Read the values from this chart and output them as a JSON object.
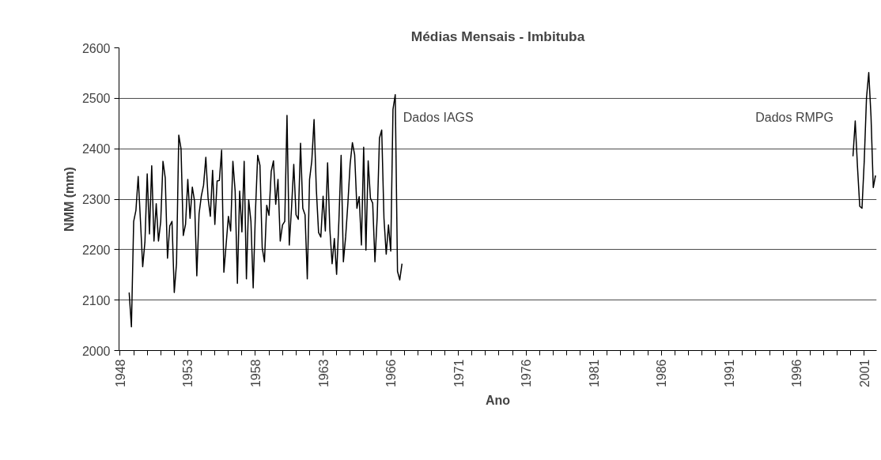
{
  "chart_data": {
    "type": "line",
    "title": "Médias Mensais - Imbituba",
    "xlabel": "Ano",
    "ylabel": "NMM (mm)",
    "categories": [
      "1948",
      null,
      null,
      null,
      null,
      null,
      null,
      null,
      null,
      null,
      null,
      null,
      null,
      null,
      null,
      null,
      null,
      null,
      null,
      null,
      null,
      null,
      null,
      null,
      null,
      null,
      null,
      null,
      null,
      null,
      "1953",
      null,
      null,
      null,
      null,
      null,
      null,
      null,
      null,
      null,
      null,
      null,
      null,
      null,
      null,
      null,
      null,
      null,
      null,
      null,
      null,
      null,
      null,
      null,
      null,
      null,
      null,
      null,
      null,
      null,
      "1958",
      null,
      null,
      null,
      null,
      null,
      null,
      null,
      null,
      null,
      null,
      null,
      null,
      null,
      null,
      null,
      null,
      null,
      null,
      null,
      null,
      null,
      null,
      null,
      null,
      null,
      null,
      null,
      null,
      null,
      "1963",
      null,
      null,
      null,
      null,
      null,
      null,
      null,
      null,
      null,
      null,
      null,
      null,
      null,
      null,
      null,
      null,
      null,
      null,
      null,
      null,
      null,
      null,
      null,
      null,
      null,
      null,
      null,
      null,
      null,
      "1966",
      null,
      null,
      null,
      null,
      null,
      null,
      null,
      null,
      null,
      null,
      null,
      null,
      null,
      null,
      null,
      null,
      null,
      null,
      null,
      null,
      null,
      null,
      null,
      null,
      null,
      null,
      null,
      null,
      null,
      "1971",
      null,
      null,
      null,
      null,
      null,
      null,
      null,
      null,
      null,
      null,
      null,
      null,
      null,
      null,
      null,
      null,
      null,
      null,
      null,
      null,
      null,
      null,
      null,
      null,
      null,
      null,
      null,
      null,
      null,
      "1976",
      null,
      null,
      null,
      null,
      null,
      null,
      null,
      null,
      null,
      null,
      null,
      null,
      null,
      null,
      null,
      null,
      null,
      null,
      null,
      null,
      null,
      null,
      null,
      null,
      null,
      null,
      null,
      null,
      null,
      "1981",
      null,
      null,
      null,
      null,
      null,
      null,
      null,
      null,
      null,
      null,
      null,
      null,
      null,
      null,
      null,
      null,
      null,
      null,
      null,
      null,
      null,
      null,
      null,
      null,
      null,
      null,
      null,
      null,
      null,
      "1986",
      null,
      null,
      null,
      null,
      null,
      null,
      null,
      null,
      null,
      null,
      null,
      null,
      null,
      null,
      null,
      null,
      null,
      null,
      null,
      null,
      null,
      null,
      null,
      null,
      null,
      null,
      null,
      null,
      null,
      "1991",
      null,
      null,
      null,
      null,
      null,
      null,
      null,
      null,
      null,
      null,
      null,
      null,
      null,
      null,
      null,
      null,
      null,
      null,
      null,
      null,
      null,
      null,
      null,
      null,
      null,
      null,
      null,
      null,
      null,
      "1996",
      null,
      null,
      null,
      null,
      null,
      null,
      null,
      null,
      null,
      null,
      null,
      null,
      null,
      null,
      null,
      null,
      null,
      null,
      null,
      null,
      null,
      null,
      null,
      null,
      null,
      null,
      null,
      null,
      null,
      "2001",
      null,
      null,
      null,
      null,
      null
    ],
    "series": [
      {
        "color": "#000000",
        "values": [
          null,
          null,
          null,
          null,
          2115,
          2047,
          2256,
          2278,
          2345,
          2258,
          2166,
          2216,
          2350,
          2231,
          2366,
          2217,
          2291,
          2217,
          2256,
          2375,
          2342,
          2183,
          2247,
          2256,
          2115,
          2173,
          2427,
          2400,
          2228,
          2250,
          2339,
          2262,
          2324,
          2296,
          2148,
          2271,
          2306,
          2328,
          2383,
          2302,
          2266,
          2357,
          2250,
          2336,
          2337,
          2397,
          2155,
          2210,
          2266,
          2237,
          2375,
          2316,
          2133,
          2316,
          2235,
          2375,
          2142,
          2299,
          2256,
          2124,
          2275,
          2387,
          2367,
          2204,
          2176,
          2288,
          2268,
          2355,
          2376,
          2290,
          2339,
          2217,
          2249,
          2256,
          2466,
          2209,
          2282,
          2369,
          2269,
          2260,
          2411,
          2282,
          2269,
          2142,
          2339,
          2376,
          2458,
          2320,
          2234,
          2225,
          2306,
          2237,
          2372,
          2240,
          2172,
          2222,
          2151,
          2256,
          2387,
          2176,
          2225,
          2292,
          2370,
          2412,
          2388,
          2282,
          2305,
          2209,
          2403,
          2199,
          2376,
          2302,
          2292,
          2176,
          2265,
          2421,
          2437,
          2262,
          2191,
          2249,
          2197,
          2478,
          2507,
          2157,
          2140,
          2172,
          null,
          null,
          null,
          null,
          null,
          null,
          null,
          null,
          null,
          null,
          null,
          null,
          null,
          null,
          null,
          null,
          null,
          null,
          null,
          null,
          null,
          null,
          null,
          null,
          null,
          null,
          null,
          null,
          null,
          null,
          null,
          null,
          null,
          null,
          null,
          null,
          null,
          null,
          null,
          null,
          null,
          null,
          null,
          null,
          null,
          null,
          null,
          null,
          null,
          null,
          null,
          null,
          null,
          null,
          null,
          null,
          null,
          null,
          null,
          null,
          null,
          null,
          null,
          null,
          null,
          null,
          null,
          null,
          null,
          null,
          null,
          null,
          null,
          null,
          null,
          null,
          null,
          null,
          null,
          null,
          null,
          null,
          null,
          null,
          null,
          null,
          null,
          null,
          null,
          null,
          null,
          null,
          null,
          null,
          null,
          null,
          null,
          null,
          null,
          null,
          null,
          null,
          null,
          null,
          null,
          null,
          null,
          null,
          null,
          null,
          null,
          null,
          null,
          null,
          null,
          null,
          null,
          null,
          null,
          null,
          null,
          null,
          null,
          null,
          null,
          null,
          null,
          null,
          null,
          null,
          null,
          null,
          null,
          null,
          null,
          null,
          null,
          null,
          null,
          null,
          null,
          null,
          null,
          null,
          null,
          null,
          null,
          null,
          null,
          null,
          null,
          null,
          null,
          null,
          null,
          null,
          null,
          null,
          null,
          null,
          null,
          null,
          null,
          null,
          null,
          null,
          null,
          null,
          null,
          null,
          null,
          null,
          null,
          null,
          null,
          null,
          null,
          null,
          null,
          null,
          null,
          null,
          null,
          null,
          null,
          null,
          null,
          null,
          null,
          null,
          null,
          null,
          null,
          null,
          null,
          null,
          null,
          null,
          null,
          2385,
          2455,
          2364,
          2286,
          2282,
          2376,
          2501,
          2551,
          2464,
          2323,
          2347
        ]
      }
    ],
    "ylim": [
      2000,
      2600
    ],
    "yticks": [
      2000,
      2100,
      2200,
      2300,
      2400,
      2500,
      2600
    ],
    "grid": "y",
    "marker": "none",
    "line_style": "solid",
    "annotations": [
      "Dados IAGS",
      "Dados RMPG"
    ]
  }
}
